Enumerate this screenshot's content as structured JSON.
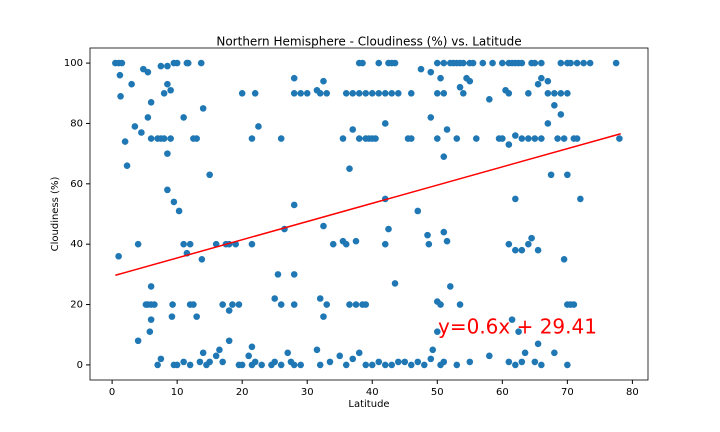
{
  "chart_data": {
    "type": "scatter",
    "title": "Northern Hemisphere - Cloudiness (%) vs. Latitude",
    "x_label": "Latitude",
    "y_label": "Cloudiness (%)",
    "xlim": [
      -3.4,
      82.4
    ],
    "ylim": [
      -5,
      105
    ],
    "xticks": [
      0,
      10,
      20,
      30,
      40,
      50,
      60,
      70,
      80
    ],
    "yticks": [
      0,
      20,
      40,
      60,
      80,
      100
    ],
    "color": "#1f77b4",
    "x": [
      0.5,
      1,
      1.5,
      9.5,
      10,
      11.5,
      11.7,
      13.7,
      38,
      38.5,
      41,
      42.5,
      43,
      43.5,
      50,
      51,
      52,
      52.5,
      53,
      53.5,
      54,
      55,
      55.5,
      57,
      58.5,
      60,
      61,
      61.5,
      62,
      62.5,
      63,
      64.5,
      65,
      66,
      69,
      70,
      70.5,
      71.5,
      72.5,
      73.5,
      77.5,
      4.8,
      5.5,
      7.5,
      8.5,
      28,
      32.5,
      47.5,
      49,
      50.5,
      54.5,
      55,
      65.5,
      66,
      67,
      1.2,
      1.3,
      3,
      6,
      8.5,
      9,
      8,
      20,
      22,
      28,
      29,
      30,
      31.5,
      32,
      33,
      36,
      37,
      38,
      39,
      40,
      41,
      42,
      43,
      44,
      46,
      50,
      51,
      53.5,
      54,
      58,
      60.5,
      61,
      64,
      67,
      68,
      69,
      70,
      11,
      14,
      13,
      12.5,
      2,
      4.5,
      3.5,
      5.5,
      6,
      7,
      7.5,
      8,
      8.5,
      9,
      21.5,
      22.5,
      26,
      35.5,
      37,
      38,
      39,
      39.5,
      40,
      40.5,
      42,
      45.5,
      46,
      49,
      50,
      51.5,
      53,
      56,
      59.5,
      60,
      61,
      62,
      63,
      64,
      65,
      66,
      67,
      68,
      68.5,
      69,
      69.5,
      71,
      71.5,
      78,
      2.3,
      15,
      36.5,
      51,
      67.5,
      70,
      72,
      42,
      62,
      8.5,
      9.5,
      10.3,
      28,
      47,
      4,
      11,
      12,
      11.5,
      13.8,
      16,
      17.5,
      18,
      19,
      21.5,
      26.5,
      32.5,
      34,
      35.5,
      36,
      37.5,
      42.5,
      42,
      48.5,
      48.7,
      51,
      51.5,
      61,
      62,
      63,
      64,
      64.5,
      65.5,
      69.5,
      1,
      25.5,
      28,
      25,
      26,
      28,
      32,
      33,
      32.5,
      36.5,
      37.5,
      38.5,
      39,
      43.5,
      50,
      50.5,
      52,
      53.5,
      5.5,
      6,
      6.5,
      5.2,
      6,
      6,
      5.8,
      9.2,
      9.3,
      12,
      12.5,
      13,
      17,
      18,
      18.5,
      19.5,
      21.5,
      21,
      61.5,
      62.5,
      70,
      70.5,
      71,
      4,
      7.5,
      7,
      9.5,
      10,
      11,
      12,
      13.5,
      14,
      14.5,
      15,
      16,
      16.5,
      17,
      18,
      19.5,
      20,
      21.5,
      22,
      23,
      24.5,
      25,
      26,
      27,
      27.5,
      28,
      29,
      31.5,
      32,
      33.5,
      35,
      36,
      37,
      38,
      39,
      40,
      41,
      42,
      43,
      44,
      45,
      46,
      47,
      48,
      49,
      49.3,
      50,
      50.5,
      51,
      53,
      55,
      58,
      61,
      62,
      63,
      63.5,
      65,
      65.5,
      66,
      68,
      70
    ],
    "values": [
      100,
      100,
      100,
      100,
      100,
      100,
      100,
      100,
      100,
      100,
      100,
      100,
      100,
      100,
      100,
      100,
      100,
      100,
      100,
      100,
      100,
      100,
      100,
      100,
      100,
      100,
      100,
      100,
      100,
      100,
      100,
      100,
      100,
      100,
      100,
      100,
      100,
      100,
      100,
      100,
      100,
      98,
      97,
      99,
      99,
      95,
      94,
      98,
      97,
      95,
      95,
      94,
      93,
      95,
      94,
      96,
      89,
      93,
      87,
      93,
      91,
      90,
      90,
      90,
      90,
      90,
      90,
      91,
      90,
      90,
      90,
      90,
      90,
      90,
      90,
      90,
      90,
      90,
      90,
      90,
      90,
      90,
      92,
      90,
      88,
      91,
      90,
      90,
      90,
      90,
      90,
      90,
      82,
      85,
      75,
      75,
      74,
      77,
      79,
      82,
      75,
      75,
      75,
      75,
      70,
      75,
      75,
      79,
      75,
      75,
      78,
      75,
      75,
      75,
      75,
      75,
      80,
      75,
      75,
      82,
      75,
      78,
      75,
      75,
      75,
      75,
      73,
      76,
      75,
      75,
      75,
      75,
      80,
      86,
      75,
      83,
      75,
      75,
      75,
      75,
      66,
      63,
      65,
      69,
      63,
      63,
      55,
      55,
      55,
      58,
      54,
      51,
      53,
      51,
      40,
      40,
      40,
      37,
      35,
      40,
      40,
      40,
      40,
      40,
      45,
      46,
      40,
      41,
      40,
      41,
      45,
      40,
      43,
      40,
      44,
      41,
      40,
      38,
      38,
      40,
      42,
      38,
      35,
      36,
      30,
      30,
      22,
      20,
      20,
      22,
      20,
      16,
      20,
      20,
      20,
      20,
      27,
      21,
      20,
      26,
      20,
      20,
      20,
      20,
      20,
      26,
      15,
      11,
      16,
      20,
      20,
      20,
      16,
      20,
      18,
      20,
      20,
      6,
      3,
      15,
      11,
      20,
      20,
      20,
      8,
      2,
      0,
      0,
      0,
      1,
      0,
      1,
      4,
      0,
      1,
      3,
      5,
      1,
      8,
      0,
      0,
      0,
      1,
      0,
      0,
      1,
      0,
      4,
      1,
      0,
      0,
      5,
      0,
      1,
      3,
      0,
      2,
      4,
      0,
      0,
      1,
      0,
      0,
      1,
      1,
      0,
      1,
      0,
      2,
      5,
      11,
      0,
      1,
      0,
      1,
      3,
      1,
      0,
      1,
      4,
      1,
      7,
      0,
      4,
      0
    ],
    "fit": {
      "x": [
        0.5,
        78.2
      ],
      "values": [
        29.7,
        76.6
      ],
      "color": "#ff0000"
    },
    "annotation": {
      "text": "y=0.6x + 29.41",
      "color": "#ff0000"
    }
  }
}
